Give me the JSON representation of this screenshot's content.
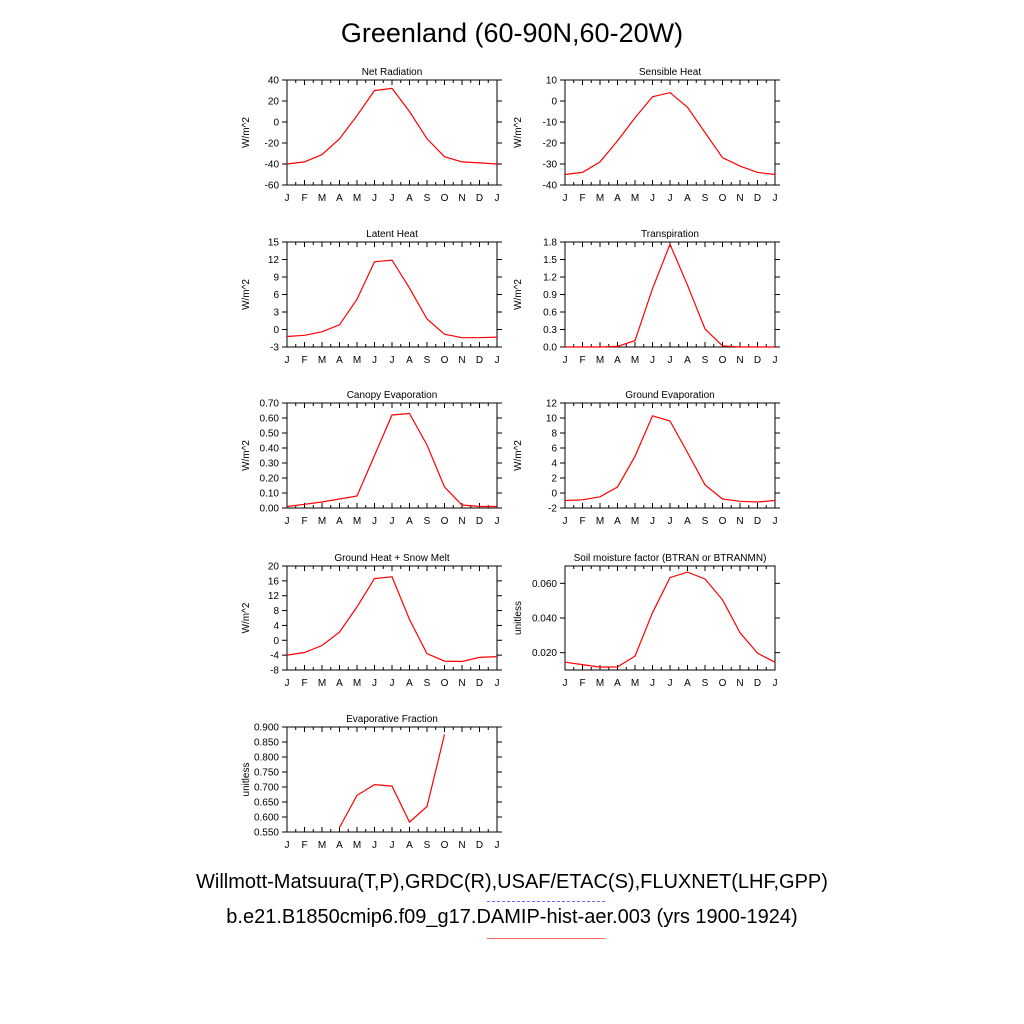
{
  "title": "Greenland (60-90N,60-20W)",
  "months": [
    "J",
    "F",
    "M",
    "A",
    "M",
    "J",
    "J",
    "A",
    "S",
    "O",
    "N",
    "D",
    "J"
  ],
  "legend": {
    "observations": "Willmott-Matsuura(T,P),GRDC(R),USAF/ETAC(S),FLUXNET(LHF,GPP)",
    "model": "b.e21.B1850cmip6.f09_g17.DAMIP-hist-aer.003 (yrs 1900-1924)",
    "observations_color": "#6b6bff",
    "model_color": "#ff0000"
  },
  "chart_data": [
    {
      "type": "line",
      "title": "Net Radiation",
      "ylabel": "W/m^2",
      "ylim": [
        -60,
        40
      ],
      "yticks": [
        -60,
        -40,
        -20,
        0,
        20,
        40
      ],
      "ytick_labels": [
        "-60",
        "-40",
        "-20",
        "0",
        "20",
        "40"
      ],
      "series": [
        {
          "values": [
            -40,
            -38,
            -31,
            -16,
            6,
            30,
            32,
            10,
            -16,
            -33,
            -38,
            -39,
            -40
          ]
        }
      ]
    },
    {
      "type": "line",
      "title": "Sensible Heat",
      "ylabel": "W/m^2",
      "ylim": [
        -40,
        10
      ],
      "yticks": [
        -40,
        -30,
        -20,
        -10,
        0,
        10
      ],
      "ytick_labels": [
        "-40",
        "-30",
        "-20",
        "-10",
        "0",
        "10"
      ],
      "series": [
        {
          "values": [
            -35,
            -34,
            -29,
            -19,
            -8,
            2,
            4,
            -3,
            -15,
            -27,
            -31,
            -34,
            -35
          ]
        }
      ]
    },
    {
      "type": "line",
      "title": "Latent Heat",
      "ylabel": "W/m^2",
      "ylim": [
        -3,
        15
      ],
      "yticks": [
        -3,
        0,
        3,
        6,
        9,
        12,
        15
      ],
      "ytick_labels": [
        "-3",
        "0",
        "3",
        "6",
        "9",
        "12",
        "15"
      ],
      "series": [
        {
          "values": [
            -1.2,
            -1,
            -0.4,
            0.8,
            5.2,
            11.6,
            11.9,
            7.1,
            1.8,
            -0.8,
            -1.4,
            -1.4,
            -1.3
          ]
        }
      ]
    },
    {
      "type": "line",
      "title": "Transpiration",
      "ylabel": "W/m^2",
      "ylim": [
        0,
        1.8
      ],
      "yticks": [
        0,
        0.3,
        0.6,
        0.9,
        1.2,
        1.5,
        1.8
      ],
      "ytick_labels": [
        "0.0",
        "0.3",
        "0.6",
        "0.9",
        "1.2",
        "1.5",
        "1.8"
      ],
      "series": [
        {
          "values": [
            0,
            0,
            0,
            0.01,
            0.11,
            1,
            1.76,
            1.06,
            0.31,
            0.02,
            0,
            0,
            0
          ]
        }
      ]
    },
    {
      "type": "line",
      "title": "Canopy Evaporation",
      "ylabel": "W/m^2",
      "ylim": [
        0,
        0.7
      ],
      "yticks": [
        0,
        0.1,
        0.2,
        0.3,
        0.4,
        0.5,
        0.6,
        0.7
      ],
      "ytick_labels": [
        "0.00",
        "0.10",
        "0.20",
        "0.30",
        "0.40",
        "0.50",
        "0.60",
        "0.70"
      ],
      "series": [
        {
          "values": [
            0.01,
            0.025,
            0.04,
            0.06,
            0.08,
            0.35,
            0.62,
            0.63,
            0.42,
            0.14,
            0.02,
            0.01,
            0.01
          ]
        }
      ]
    },
    {
      "type": "line",
      "title": "Ground Evaporation",
      "ylabel": "W/m^2",
      "ylim": [
        -2,
        12
      ],
      "yticks": [
        -2,
        0,
        2,
        4,
        6,
        8,
        10,
        12
      ],
      "ytick_labels": [
        "-2",
        "0",
        "2",
        "4",
        "6",
        "8",
        "10",
        "12"
      ],
      "series": [
        {
          "values": [
            -1,
            -0.9,
            -0.5,
            0.8,
            4.9,
            10.3,
            9.6,
            5.4,
            1.1,
            -0.8,
            -1.1,
            -1.2,
            -1
          ]
        }
      ]
    },
    {
      "type": "line",
      "title": "Ground Heat + Snow Melt",
      "ylabel": "W/m^2",
      "ylim": [
        -8,
        20
      ],
      "yticks": [
        -8,
        -4,
        0,
        4,
        8,
        12,
        16,
        20
      ],
      "ytick_labels": [
        "-8",
        "-4",
        "0",
        "4",
        "8",
        "12",
        "16",
        "20"
      ],
      "series": [
        {
          "values": [
            -4,
            -3.3,
            -1.4,
            2.2,
            9,
            16.6,
            17.1,
            5.6,
            -3.6,
            -5.6,
            -5.7,
            -4.6,
            -4.4
          ]
        }
      ]
    },
    {
      "type": "line",
      "title": "Soil moisture factor (BTRAN or BTRANMN)",
      "ylabel": "unitless",
      "ylim": [
        0.01,
        0.07
      ],
      "yticks": [
        0.02,
        0.04,
        0.06
      ],
      "ytick_labels": [
        "0.020",
        "0.040",
        "0.060"
      ],
      "series": [
        {
          "values": [
            0.0145,
            0.0131,
            0.0117,
            0.0118,
            0.018,
            0.043,
            0.0633,
            0.0665,
            0.0625,
            0.0505,
            0.0315,
            0.0197,
            0.0145
          ]
        }
      ]
    },
    {
      "type": "line",
      "title": "Evaporative Fraction",
      "ylabel": "unitless",
      "ylim": [
        0.55,
        0.9
      ],
      "yticks": [
        0.55,
        0.6,
        0.65,
        0.7,
        0.75,
        0.8,
        0.85,
        0.9
      ],
      "ytick_labels": [
        "0.550",
        "0.600",
        "0.650",
        "0.700",
        "0.750",
        "0.800",
        "0.850",
        "0.900"
      ],
      "series": [
        {
          "values": [
            null,
            null,
            null,
            0.565,
            0.672,
            0.708,
            0.703,
            0.583,
            0.635,
            0.875,
            null,
            null,
            null
          ]
        }
      ]
    }
  ]
}
